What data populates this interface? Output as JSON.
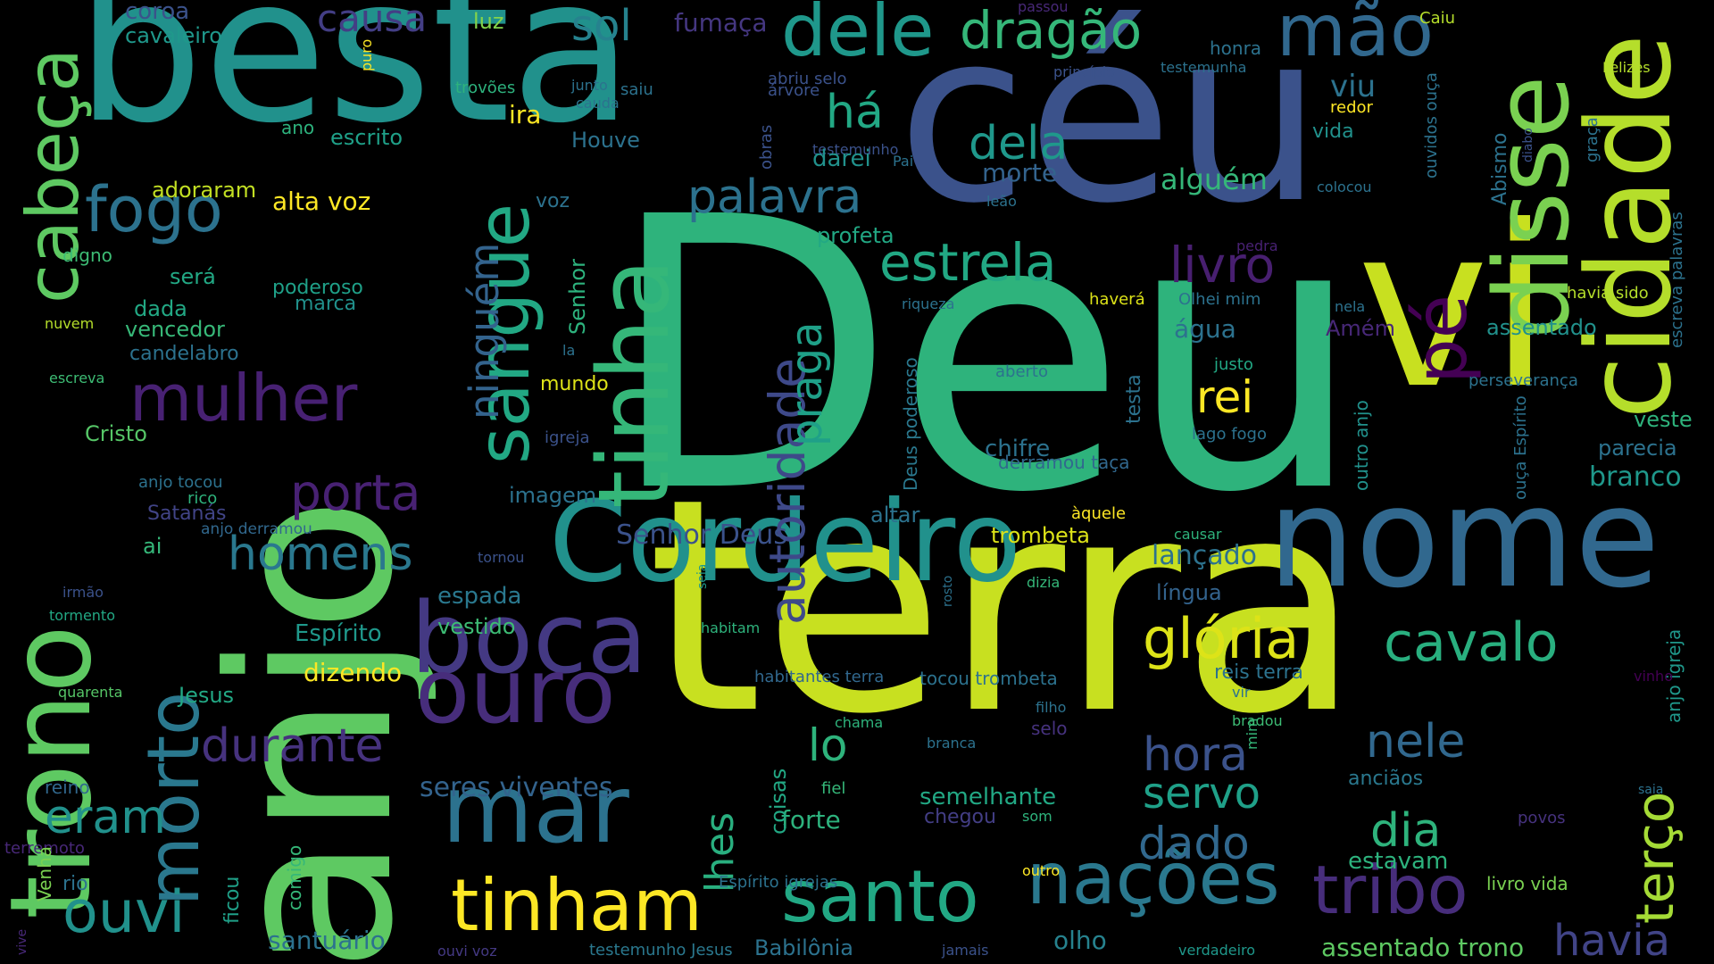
{
  "words": [
    {
      "text": "Deu",
      "color": "#2eb37c"
    },
    {
      "text": "terra",
      "color": "#c8e020"
    },
    {
      "text": "anjo",
      "color": "#5ec962"
    },
    {
      "text": "céu",
      "color": "#3b528b"
    },
    {
      "text": "besta",
      "color": "#21918c"
    },
    {
      "text": "vi",
      "color": "#c8e020"
    },
    {
      "text": "nome",
      "color": "#31688e"
    },
    {
      "text": "Cordeiro",
      "color": "#21918c"
    },
    {
      "text": "trono",
      "color": "#5ec962"
    },
    {
      "text": "cidade",
      "color": "#b5de2b"
    },
    {
      "text": "disse",
      "color": "#7ad151"
    },
    {
      "text": "tinha",
      "color": "#35b779"
    },
    {
      "text": "boca",
      "color": "#443983"
    },
    {
      "text": "mar",
      "color": "#2c728e"
    },
    {
      "text": "ouro",
      "color": "#472d7b"
    },
    {
      "text": "morto",
      "color": "#2a788e"
    },
    {
      "text": "cabeça",
      "color": "#5ec962"
    },
    {
      "text": "pé",
      "color": "#440154"
    },
    {
      "text": "sangue",
      "color": "#22a884"
    },
    {
      "text": "dele",
      "color": "#1f988b"
    },
    {
      "text": "mão",
      "color": "#31688e"
    },
    {
      "text": "fogo",
      "color": "#2c728e"
    },
    {
      "text": "tinham",
      "color": "#fde725"
    },
    {
      "text": "santo",
      "color": "#22a884"
    },
    {
      "text": "nações",
      "color": "#2a788e"
    },
    {
      "text": "tribo",
      "color": "#472d7b"
    },
    {
      "text": "ouvi",
      "color": "#21918c"
    },
    {
      "text": "dragão",
      "color": "#35b779"
    },
    {
      "text": "estrela",
      "color": "#22a884"
    },
    {
      "text": "mulher",
      "color": "#482173"
    },
    {
      "text": "porta",
      "color": "#482173"
    },
    {
      "text": "livro",
      "color": "#481f70"
    },
    {
      "text": "glória",
      "color": "#dde318"
    },
    {
      "text": "cavalo",
      "color": "#29af7f"
    },
    {
      "text": "autoridade",
      "color": "#3e4989"
    },
    {
      "text": "praga",
      "color": "#1fa088"
    },
    {
      "text": "terço",
      "color": "#a5db36"
    },
    {
      "text": "palavra",
      "color": "#2c728e"
    },
    {
      "text": "há",
      "color": "#22a884"
    },
    {
      "text": "dela",
      "color": "#1f988b"
    },
    {
      "text": "ninguém",
      "color": "#33638d"
    },
    {
      "text": "homens",
      "color": "#2a788e"
    },
    {
      "text": "durante",
      "color": "#46327e"
    },
    {
      "text": "eram",
      "color": "#21918c"
    },
    {
      "text": "hora",
      "color": "#3b528b"
    },
    {
      "text": "nele",
      "color": "#31688e"
    },
    {
      "text": "dia",
      "color": "#2eb37c"
    },
    {
      "text": "dado",
      "color": "#31688e"
    },
    {
      "text": "havia",
      "color": "#414487"
    },
    {
      "text": "servo",
      "color": "#1fa088"
    },
    {
      "text": "lo",
      "color": "#2eb37c"
    },
    {
      "text": "lhes",
      "color": "#29af7f"
    },
    {
      "text": "rei",
      "color": "#fde725"
    },
    {
      "text": "causa",
      "color": "#433e85"
    },
    {
      "text": "sol",
      "color": "#26828e"
    },
    {
      "text": "viu",
      "color": "#2c728e"
    },
    {
      "text": "alguém",
      "color": "#35b779"
    },
    {
      "text": "morte",
      "color": "#33638d"
    },
    {
      "text": "Abismo",
      "color": "#2c728e"
    },
    {
      "text": "Felizes",
      "color": "#b5de2b"
    },
    {
      "text": "coroa",
      "color": "#3b528b"
    },
    {
      "text": "cavaleiro",
      "color": "#1f988b"
    },
    {
      "text": "fumaça",
      "color": "#453781"
    },
    {
      "text": "luz",
      "color": "#84d44b"
    },
    {
      "text": "trovões",
      "color": "#2db27d"
    },
    {
      "text": "ira",
      "color": "#fde725"
    },
    {
      "text": "escrito",
      "color": "#1fa088"
    },
    {
      "text": "ano",
      "color": "#2db27d"
    },
    {
      "text": "adoraram",
      "color": "#c2df23"
    },
    {
      "text": "alta voz",
      "color": "#fde725"
    },
    {
      "text": "digno",
      "color": "#3dbc74"
    },
    {
      "text": "será",
      "color": "#22a884"
    },
    {
      "text": "dada",
      "color": "#22a884"
    },
    {
      "text": "poderoso",
      "color": "#1fa088"
    },
    {
      "text": "marca",
      "color": "#21918c"
    },
    {
      "text": "vencedor",
      "color": "#37b878"
    },
    {
      "text": "candelabro",
      "color": "#2c728e"
    },
    {
      "text": "nuvem",
      "color": "#b5de2b"
    },
    {
      "text": "escreva",
      "color": "#3dbc74"
    },
    {
      "text": "Cristo",
      "color": "#56c667"
    },
    {
      "text": "anjo tocou",
      "color": "#2c728e"
    },
    {
      "text": "rico",
      "color": "#2eb37c"
    },
    {
      "text": "Satanás",
      "color": "#414487"
    },
    {
      "text": "anjo derramou",
      "color": "#31688e"
    },
    {
      "text": "ai",
      "color": "#35b779"
    },
    {
      "text": "irmão",
      "color": "#3b528b"
    },
    {
      "text": "tormento",
      "color": "#22a884"
    },
    {
      "text": "Espírito",
      "color": "#1f988b"
    },
    {
      "text": "Jesus",
      "color": "#22a884"
    },
    {
      "text": "quarenta",
      "color": "#56c667"
    },
    {
      "text": "reino",
      "color": "#31688e"
    },
    {
      "text": "terremoto",
      "color": "#482878"
    },
    {
      "text": "rio",
      "color": "#2c728e"
    },
    {
      "text": "Venha",
      "color": "#7ad151"
    },
    {
      "text": "vive",
      "color": "#482878"
    },
    {
      "text": "comigo",
      "color": "#35b779"
    },
    {
      "text": "ficou",
      "color": "#1fa088"
    },
    {
      "text": "santuário",
      "color": "#2c728e"
    },
    {
      "text": "ouvi voz",
      "color": "#443983"
    },
    {
      "text": "testemunho Jesus",
      "color": "#2a788e"
    },
    {
      "text": "Babilônia",
      "color": "#2c728e"
    },
    {
      "text": "jamais",
      "color": "#3b528b"
    },
    {
      "text": "olho",
      "color": "#26828e"
    },
    {
      "text": "verdadeiro",
      "color": "#1f988b"
    },
    {
      "text": "assentado trono",
      "color": "#5ec962"
    },
    {
      "text": "Espírito igrejas",
      "color": "#2c728e"
    },
    {
      "text": "outro",
      "color": "#fde725"
    },
    {
      "text": "estavam",
      "color": "#2db27d"
    },
    {
      "text": "livro vida",
      "color": "#7ad151"
    },
    {
      "text": "povos",
      "color": "#46327e"
    },
    {
      "text": "saia",
      "color": "#2c728e"
    },
    {
      "text": "anjo igreja",
      "color": "#1f988b"
    },
    {
      "text": "vinho",
      "color": "#440154"
    },
    {
      "text": "anciãos",
      "color": "#2a788e"
    },
    {
      "text": "mim",
      "color": "#35b779"
    },
    {
      "text": "bradou",
      "color": "#3dbc74"
    },
    {
      "text": "vir",
      "color": "#2c728e"
    },
    {
      "text": "reis terra",
      "color": "#2c728e"
    },
    {
      "text": "filho",
      "color": "#2c728e"
    },
    {
      "text": "selo",
      "color": "#46327e"
    },
    {
      "text": "chegou",
      "color": "#433e85"
    },
    {
      "text": "som",
      "color": "#2eb37c"
    },
    {
      "text": "semelhante",
      "color": "#22a884"
    },
    {
      "text": "forte",
      "color": "#2db27d"
    },
    {
      "text": "fiel",
      "color": "#35b779"
    },
    {
      "text": "coisas",
      "color": "#22a884"
    },
    {
      "text": "seres viventes",
      "color": "#33638d"
    },
    {
      "text": "branca",
      "color": "#2c728e"
    },
    {
      "text": "chama",
      "color": "#2eb37c"
    },
    {
      "text": "habitantes terra",
      "color": "#31688e"
    },
    {
      "text": "tocou trombeta",
      "color": "#2c728e"
    },
    {
      "text": "dizendo",
      "color": "#fde725"
    },
    {
      "text": "vestido",
      "color": "#3dbc74"
    },
    {
      "text": "espada",
      "color": "#2a788e"
    },
    {
      "text": "Senhor Deus",
      "color": "#3b528b"
    },
    {
      "text": "habitam",
      "color": "#2eb37c"
    },
    {
      "text": "seja",
      "color": "#1f988b"
    },
    {
      "text": "imagem",
      "color": "#2c728e"
    },
    {
      "text": "tornou",
      "color": "#3b528b"
    },
    {
      "text": "trombeta",
      "color": "#dde318"
    },
    {
      "text": "lançado",
      "color": "#2c728e"
    },
    {
      "text": "língua",
      "color": "#33638d"
    },
    {
      "text": "causar",
      "color": "#2eb37c"
    },
    {
      "text": "àquele",
      "color": "#fde725"
    },
    {
      "text": "dizia",
      "color": "#35b779"
    },
    {
      "text": "rosto",
      "color": "#2c728e"
    },
    {
      "text": "altar",
      "color": "#2c728e"
    },
    {
      "text": "derramou taça",
      "color": "#31688e"
    },
    {
      "text": "chifre",
      "color": "#2c728e"
    },
    {
      "text": "Deus poderoso",
      "color": "#2a788e"
    },
    {
      "text": "profeta",
      "color": "#22a884"
    },
    {
      "text": "igreja",
      "color": "#3b528b"
    },
    {
      "text": "lago fogo",
      "color": "#2c728e"
    },
    {
      "text": "outro anjo",
      "color": "#21918c"
    },
    {
      "text": "ouça Espírito",
      "color": "#2c728e"
    },
    {
      "text": "veste",
      "color": "#2eb37c"
    },
    {
      "text": "parecia",
      "color": "#2c728e"
    },
    {
      "text": "branco",
      "color": "#1f988b"
    },
    {
      "text": "perseverança",
      "color": "#2c728e"
    },
    {
      "text": "justo",
      "color": "#22a884"
    },
    {
      "text": "aberto",
      "color": "#2c728e"
    },
    {
      "text": "Olhei mim",
      "color": "#2c728e"
    },
    {
      "text": "haverá",
      "color": "#dde318"
    },
    {
      "text": "pedra",
      "color": "#482173"
    },
    {
      "text": "riqueza",
      "color": "#2c728e"
    },
    {
      "text": "água",
      "color": "#2c728e"
    },
    {
      "text": "Amém",
      "color": "#482878"
    },
    {
      "text": "nela",
      "color": "#2c728e"
    },
    {
      "text": "havia sido",
      "color": "#b5de2b"
    },
    {
      "text": "assentado",
      "color": "#21918c"
    },
    {
      "text": "escreva palavras",
      "color": "#2c728e"
    },
    {
      "text": "mundo",
      "color": "#dde318"
    },
    {
      "text": "la",
      "color": "#2c728e"
    },
    {
      "text": "Senhor",
      "color": "#2db27d"
    },
    {
      "text": "testa",
      "color": "#2c728e"
    },
    {
      "text": "leão",
      "color": "#2c728e"
    },
    {
      "text": "Pai",
      "color": "#2c728e"
    },
    {
      "text": "colocou",
      "color": "#2c728e"
    },
    {
      "text": "diabo",
      "color": "#3b528b"
    },
    {
      "text": "graça",
      "color": "#2c728e"
    },
    {
      "text": "ouvidos ouça",
      "color": "#2c728e"
    },
    {
      "text": "testemunho",
      "color": "#3b528b"
    },
    {
      "text": "darei",
      "color": "#21918c"
    },
    {
      "text": "vida",
      "color": "#21918c"
    },
    {
      "text": "redor",
      "color": "#fde725"
    },
    {
      "text": "árvore",
      "color": "#3b528b"
    },
    {
      "text": "obras",
      "color": "#3b528b"
    },
    {
      "text": "Houve",
      "color": "#2c728e"
    },
    {
      "text": "cauda",
      "color": "#2c728e"
    },
    {
      "text": "saiu",
      "color": "#2c728e"
    },
    {
      "text": "junto",
      "color": "#2c728e"
    },
    {
      "text": "abriu selo",
      "color": "#3b528b"
    },
    {
      "text": "princípio",
      "color": "#3b528b"
    },
    {
      "text": "testemunha",
      "color": "#2c728e"
    },
    {
      "text": "honra",
      "color": "#2c728e"
    },
    {
      "text": "passou",
      "color": "#482878"
    },
    {
      "text": "Caiu",
      "color": "#b5de2b"
    },
    {
      "text": "puro",
      "color": "#fde725"
    },
    {
      "text": "voz",
      "color": "#2c728e"
    }
  ]
}
